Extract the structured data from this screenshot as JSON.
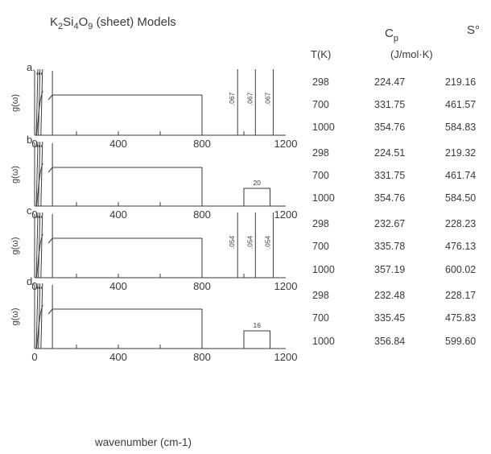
{
  "title": "K2Si4O9 (sheet) Models",
  "title_parts": {
    "a": "K",
    "s1": "2",
    "b": "Si",
    "s2": "4",
    "c": "O",
    "s3": "9",
    "d": " (sheet) Models"
  },
  "chart_data": {
    "type": "line",
    "x_label": "wavenumber (cm-1)",
    "y_label": "g(ω)",
    "xlim": [
      0,
      1200
    ],
    "x_ticks": [
      0,
      400,
      800,
      1200
    ],
    "panels": [
      {
        "label": "a.",
        "continuum": [
          85,
          800
        ],
        "optic_modes": [
          {
            "x": 970,
            "label": ".067"
          },
          {
            "x": 1055,
            "label": ".067"
          },
          {
            "x": 1140,
            "label": ".067"
          }
        ]
      },
      {
        "label": "b.",
        "continuum": [
          85,
          800
        ],
        "optic_box": {
          "x0": 1000,
          "x1": 1125,
          "label": "20"
        }
      },
      {
        "label": "c.",
        "continuum": [
          85,
          800
        ],
        "optic_modes": [
          {
            "x": 970,
            "label": ".054"
          },
          {
            "x": 1055,
            "label": ".054"
          },
          {
            "x": 1140,
            "label": ".054"
          }
        ]
      },
      {
        "label": "d.",
        "continuum": [
          85,
          800
        ],
        "optic_box": {
          "x0": 1000,
          "x1": 1125,
          "label": "16"
        }
      }
    ]
  },
  "table": {
    "headers": {
      "T": "T(K)",
      "Cp_main": "C",
      "Cp_sub": "p",
      "S": "S°",
      "units": "(J/mol·K)"
    },
    "groups": [
      {
        "rows": [
          {
            "T": "298",
            "Cp": "224.47",
            "S": "219.16"
          },
          {
            "T": "700",
            "Cp": "331.75",
            "S": "461.57"
          },
          {
            "T": "1000",
            "Cp": "354.76",
            "S": "584.83"
          }
        ]
      },
      {
        "rows": [
          {
            "T": "298",
            "Cp": "224.51",
            "S": "219.32"
          },
          {
            "T": "700",
            "Cp": "331.75",
            "S": "461.74"
          },
          {
            "T": "1000",
            "Cp": "354.76",
            "S": "584.50"
          }
        ]
      },
      {
        "rows": [
          {
            "T": "298",
            "Cp": "232.67",
            "S": "228.23"
          },
          {
            "T": "700",
            "Cp": "335.78",
            "S": "476.13"
          },
          {
            "T": "1000",
            "Cp": "357.19",
            "S": "600.02"
          }
        ]
      },
      {
        "rows": [
          {
            "T": "298",
            "Cp": "232.48",
            "S": "228.17"
          },
          {
            "T": "700",
            "Cp": "335.45",
            "S": "475.83"
          },
          {
            "T": "1000",
            "Cp": "356.84",
            "S": "599.60"
          }
        ]
      }
    ]
  }
}
